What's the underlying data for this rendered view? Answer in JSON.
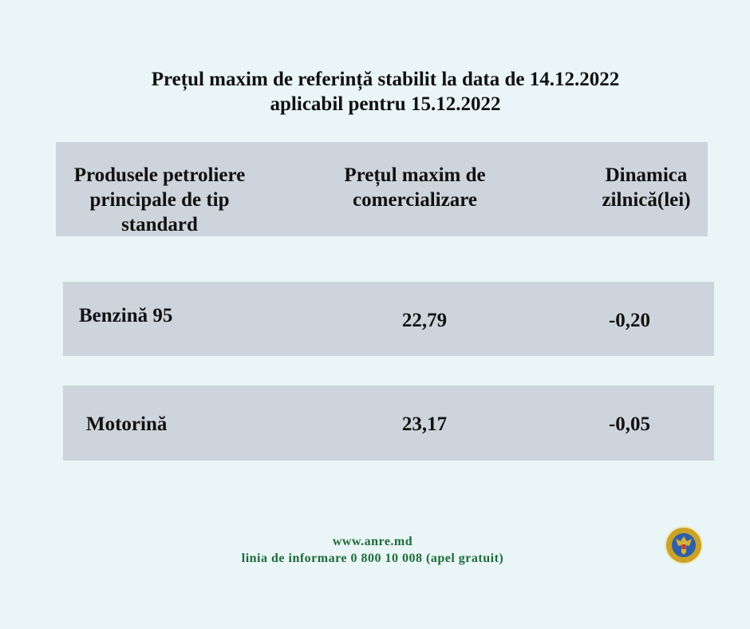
{
  "title": {
    "line1": "Prețul maxim de referință stabilit la data de 14.12.2022",
    "line2": "aplicabil pentru 15.12.2022"
  },
  "table": {
    "headers": [
      "Produsele petroliere principale de tip standard",
      "Prețul maxim de comercializare",
      "Dinamica zilnică(lei)"
    ],
    "rows": [
      {
        "product": "Benzină 95",
        "price": "22,79",
        "change": "-0,20"
      },
      {
        "product": "Motorină",
        "price": "23,17",
        "change": "-0,05"
      }
    ]
  },
  "footer": {
    "website": "www.anre.md",
    "hotline": "linia de informare 0 800 10 008 (apel gratuit)"
  },
  "logo": {
    "icon": "anre-emblem-seal"
  },
  "colors": {
    "background": "#e9f5f6",
    "box": "#cdd4db",
    "footer_text": "#1f6b3a"
  }
}
